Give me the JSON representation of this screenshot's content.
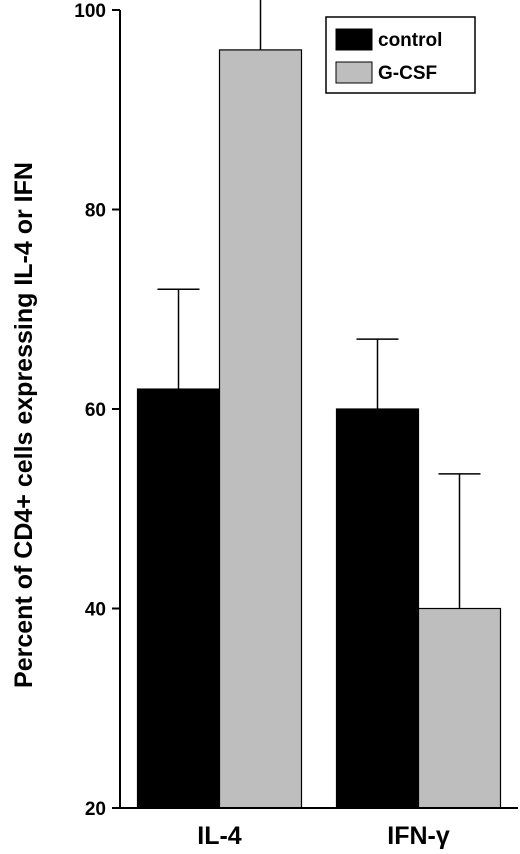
{
  "chart_data": {
    "type": "bar",
    "title": "",
    "xlabel": "",
    "ylabel": "Percent of CD4+ cells expressing IL-4 or IFN",
    "categories": [
      "IL-4",
      "IFN-γ"
    ],
    "ylim": [
      20,
      100
    ],
    "yticks": [
      20,
      40,
      60,
      80,
      100
    ],
    "grid": false,
    "legend_position": "top-right",
    "series": [
      {
        "name": "control",
        "color": "#000000",
        "values": [
          62,
          60
        ],
        "errors": [
          10,
          7
        ]
      },
      {
        "name": "G-CSF",
        "color": "#bebebe",
        "values": [
          96,
          40
        ],
        "errors": [
          17,
          13.5
        ]
      }
    ]
  }
}
